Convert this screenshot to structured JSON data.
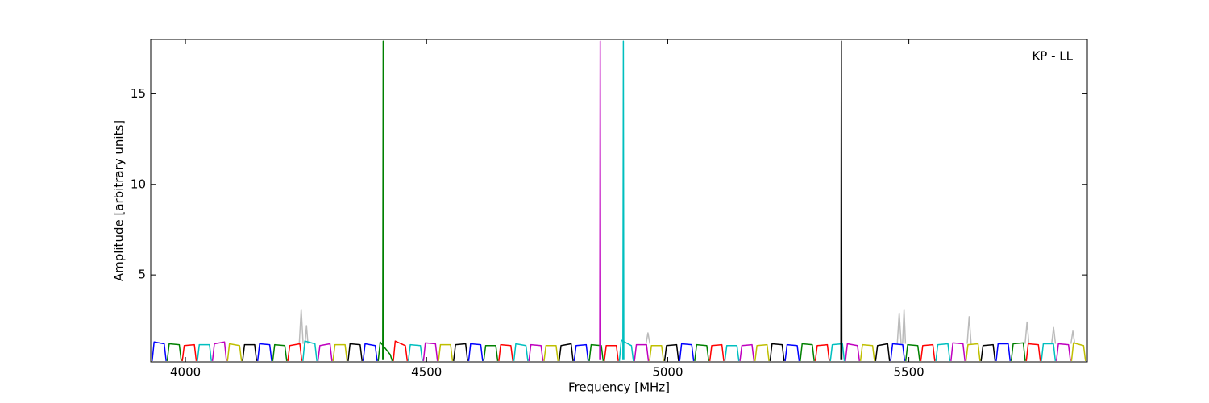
{
  "chart_data": {
    "type": "line",
    "x_label": "Frequency [MHz]",
    "y_label": "Amplitude [arbitrary units]",
    "annotation": "KP - LL",
    "xlim": [
      3928,
      5870
    ],
    "ylim": [
      0.2,
      18
    ],
    "xticks": [
      4000,
      4500,
      5000,
      5500
    ],
    "yticks": [
      5,
      10,
      15
    ],
    "grid": false,
    "series": [
      {
        "color": "#bbbbbb",
        "x": [
          4236,
          4240,
          4244,
          null,
          4248,
          4251,
          4254,
          null,
          4955,
          4959,
          4963,
          null,
          5476,
          5480,
          5484,
          null,
          5487,
          5490,
          5493,
          null,
          5621,
          5625,
          5629,
          null,
          5741,
          5745,
          5749,
          null,
          5796,
          5800,
          5804,
          null,
          5836,
          5840,
          5844
        ],
        "values": [
          1.2,
          3.1,
          1.2,
          null,
          1.2,
          2.2,
          1.2,
          null,
          1.2,
          1.8,
          1.2,
          null,
          1.2,
          2.9,
          1.2,
          null,
          1.2,
          3.1,
          1.2,
          null,
          1.2,
          2.7,
          1.2,
          null,
          1.2,
          2.4,
          1.2,
          null,
          1.2,
          2.1,
          1.2,
          null,
          1.2,
          1.9,
          1.2
        ]
      },
      {
        "color": "#0000ff",
        "x": [
          3931,
          3935,
          3956,
          3960,
          null,
          4149.75,
          4153.75,
          4174.75,
          4178.75,
          null,
          4368.5,
          4372.5,
          4393.5,
          4397.5,
          null,
          4587.25,
          4591.25,
          4612.25,
          4616.25,
          null,
          4806,
          4810,
          4831,
          4835,
          null,
          5024.75,
          5028.75,
          5049.75,
          5053.75,
          null,
          5243.5,
          5247.5,
          5268.5,
          5272.5,
          null,
          5462.25,
          5466.25,
          5487.25,
          5491.25,
          null,
          5681,
          5685,
          5706,
          5710
        ],
        "values": [
          0.25,
          1.3,
          1.2,
          0.25,
          null,
          0.25,
          1.2,
          1.15,
          0.25,
          null,
          0.25,
          1.2,
          1.1,
          0.25,
          null,
          0.25,
          1.2,
          1.15,
          0.25,
          null,
          0.25,
          1.1,
          1.15,
          0.25,
          null,
          0.25,
          1.2,
          1.15,
          0.25,
          null,
          0.25,
          1.15,
          1.1,
          0.25,
          null,
          0.25,
          1.2,
          1.15,
          0.25,
          null,
          0.25,
          1.2,
          1.2,
          0.25
        ]
      },
      {
        "color": "#008000",
        "x": [
          3962.25,
          3966.25,
          3987.25,
          3991.25,
          null,
          4181,
          4185,
          4206,
          4210,
          null,
          4399.75,
          4403.75,
          4424.75,
          4428.75,
          null,
          4618.5,
          4622.5,
          4643.5,
          4647.5,
          null,
          4837.25,
          4841.25,
          4862.25,
          4866.25,
          null,
          5056,
          5060,
          5081,
          5085,
          null,
          5274.75,
          5278.75,
          5299.75,
          5303.75,
          null,
          5493.5,
          5497.5,
          5518.5,
          5522.5,
          null,
          5712.25,
          5716.25,
          5737.25,
          5741.25
        ],
        "values": [
          0.25,
          1.2,
          1.15,
          0.25,
          null,
          0.25,
          1.15,
          1.1,
          0.25,
          null,
          0.25,
          1.3,
          0.6,
          0.25,
          null,
          0.25,
          1.1,
          1.1,
          0.25,
          null,
          0.25,
          1.15,
          1.1,
          0.25,
          null,
          0.25,
          1.15,
          1.1,
          0.25,
          null,
          0.25,
          1.2,
          1.15,
          0.25,
          null,
          0.25,
          1.15,
          1.1,
          0.25,
          null,
          0.25,
          1.2,
          1.25,
          0.25
        ]
      },
      {
        "color": "#ff0000",
        "x": [
          3993.5,
          3997.5,
          4018.5,
          4022.5,
          null,
          4212.25,
          4216.25,
          4237.25,
          4241.25,
          null,
          4431,
          4435,
          4456,
          4460,
          null,
          4649.75,
          4653.75,
          4674.75,
          4678.75,
          null,
          4868.5,
          4872.5,
          4893.5,
          4897.5,
          null,
          5087.25,
          5091.25,
          5112.25,
          5116.25,
          null,
          5306,
          5310,
          5331,
          5335,
          null,
          5524.75,
          5528.75,
          5549.75,
          5553.75,
          null,
          5743.5,
          5747.5,
          5768.5,
          5772.5
        ],
        "values": [
          0.25,
          1.1,
          1.15,
          0.25,
          null,
          0.25,
          1.1,
          1.2,
          0.25,
          null,
          0.25,
          1.35,
          1.1,
          0.25,
          null,
          0.25,
          1.15,
          1.1,
          0.25,
          null,
          0.25,
          1.1,
          1.1,
          0.25,
          null,
          0.25,
          1.1,
          1.15,
          0.25,
          null,
          0.25,
          1.1,
          1.15,
          0.25,
          null,
          0.25,
          1.1,
          1.15,
          0.25,
          null,
          0.25,
          1.2,
          1.15,
          0.25
        ]
      },
      {
        "color": "#00bfbf",
        "x": [
          4024.75,
          4028.75,
          4049.75,
          4053.75,
          null,
          4243.5,
          4247.5,
          4268.5,
          4272.5,
          null,
          4462.25,
          4466.25,
          4487.25,
          4491.25,
          null,
          4681,
          4685,
          4706,
          4710,
          null,
          4899.75,
          4903.75,
          4924.75,
          4928.75,
          null,
          5118.5,
          5122.5,
          5143.5,
          5147.5,
          null,
          5337.25,
          5341.25,
          5362.25,
          5366.25,
          null,
          5556,
          5560,
          5581,
          5585,
          null,
          5774.75,
          5778.75,
          5799.75,
          5803.75
        ],
        "values": [
          0.25,
          1.15,
          1.15,
          0.25,
          null,
          0.25,
          1.35,
          1.2,
          0.25,
          null,
          0.25,
          1.15,
          1.1,
          0.25,
          null,
          0.25,
          1.2,
          1.1,
          0.25,
          null,
          0.25,
          1.4,
          1.1,
          0.25,
          null,
          0.25,
          1.1,
          1.1,
          0.25,
          null,
          0.25,
          1.15,
          1.2,
          0.25,
          null,
          0.25,
          1.15,
          1.2,
          0.25,
          null,
          0.25,
          1.2,
          1.2,
          0.25
        ]
      },
      {
        "color": "#bf00bf",
        "x": [
          4056,
          4060,
          4081,
          4085,
          null,
          4274.75,
          4278.75,
          4299.75,
          4303.75,
          null,
          4493.5,
          4497.5,
          4518.5,
          4522.5,
          null,
          4712.25,
          4716.25,
          4737.25,
          4741.25,
          null,
          4931,
          4935,
          4956,
          4960,
          null,
          5149.75,
          5153.75,
          5174.75,
          5178.75,
          null,
          5368.5,
          5372.5,
          5393.5,
          5397.5,
          null,
          5587.25,
          5591.25,
          5612.25,
          5616.25,
          null,
          5806,
          5810,
          5831,
          5835
        ],
        "values": [
          0.25,
          1.2,
          1.3,
          0.25,
          null,
          0.25,
          1.1,
          1.2,
          0.25,
          null,
          0.25,
          1.25,
          1.2,
          0.25,
          null,
          0.25,
          1.15,
          1.1,
          0.25,
          null,
          0.25,
          1.15,
          1.15,
          0.25,
          null,
          0.25,
          1.1,
          1.15,
          0.25,
          null,
          0.25,
          1.2,
          1.1,
          0.25,
          null,
          0.25,
          1.25,
          1.2,
          0.25,
          null,
          0.25,
          1.2,
          1.15,
          0.25
        ]
      },
      {
        "color": "#bfbf00",
        "x": [
          4087.25,
          4091.25,
          4112.25,
          4116.25,
          null,
          4306,
          4310,
          4331,
          4335,
          null,
          4524.75,
          4528.75,
          4549.75,
          4553.75,
          null,
          4743.5,
          4747.5,
          4768.5,
          4772.5,
          null,
          4962.25,
          4966.25,
          4987.25,
          4991.25,
          null,
          5181,
          5185,
          5206,
          5210,
          null,
          5399.75,
          5403.75,
          5424.75,
          5428.75,
          null,
          5618.5,
          5622.5,
          5643.5,
          5647.5,
          null,
          5837.25,
          5841.25,
          5862.25,
          5866.25
        ],
        "values": [
          0.25,
          1.2,
          1.1,
          0.25,
          null,
          0.25,
          1.15,
          1.15,
          0.25,
          null,
          0.25,
          1.15,
          1.15,
          0.25,
          null,
          0.25,
          1.1,
          1.1,
          0.25,
          null,
          0.25,
          1.1,
          1.1,
          0.25,
          null,
          0.25,
          1.1,
          1.15,
          0.25,
          null,
          0.25,
          1.15,
          1.1,
          0.25,
          null,
          0.25,
          1.15,
          1.2,
          0.25,
          null,
          0.25,
          1.25,
          1.1,
          0.25
        ]
      },
      {
        "color": "#000000",
        "x": [
          4118.5,
          4122.5,
          4143.5,
          4147.5,
          null,
          4337.25,
          4341.25,
          4362.25,
          4366.25,
          null,
          4556,
          4560,
          4581,
          4585,
          null,
          4774.75,
          4778.75,
          4799.75,
          4803.75,
          null,
          4993.5,
          4997.5,
          5018.5,
          5022.5,
          null,
          5212.25,
          5216.25,
          5237.25,
          5241.25,
          null,
          5431,
          5435,
          5456,
          5460,
          null,
          5649.75,
          5653.75,
          5674.75,
          5678.75
        ],
        "values": [
          0.25,
          1.15,
          1.15,
          0.25,
          null,
          0.25,
          1.2,
          1.15,
          0.25,
          null,
          0.25,
          1.15,
          1.2,
          0.25,
          null,
          0.25,
          1.1,
          1.2,
          0.25,
          null,
          0.25,
          1.1,
          1.15,
          0.25,
          null,
          0.25,
          1.2,
          1.15,
          0.25,
          null,
          0.25,
          1.1,
          1.2,
          0.25,
          null,
          0.25,
          1.1,
          1.15,
          0.25
        ]
      },
      {
        "color": "#008000",
        "x": [
          4409,
          4410,
          4411
        ],
        "values": [
          0.3,
          17.9,
          0.3
        ]
      },
      {
        "color": "#bf00bf",
        "x": [
          4859,
          4860,
          4861
        ],
        "values": [
          0.3,
          17.9,
          0.3
        ]
      },
      {
        "color": "#00bfbf",
        "x": [
          4907,
          4908,
          4909
        ],
        "values": [
          0.3,
          17.9,
          0.3
        ]
      },
      {
        "color": "#000000",
        "x": [
          5359,
          5360,
          5361
        ],
        "values": [
          0.3,
          17.9,
          0.3
        ]
      }
    ]
  }
}
